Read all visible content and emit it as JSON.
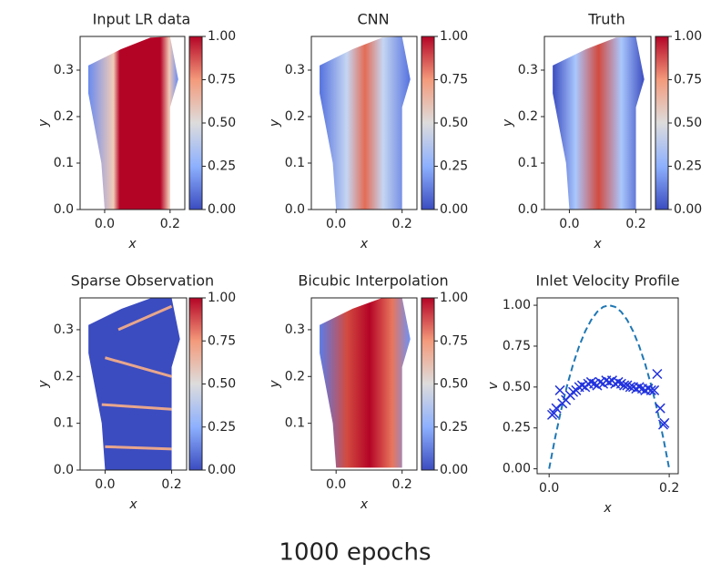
{
  "chart_data": [
    {
      "type": "heatmap",
      "title": "Input LR data",
      "xlabel": "x",
      "ylabel": "y",
      "colormap": "coolwarm",
      "xlim": [
        -0.075,
        0.245
      ],
      "ylim": [
        0,
        0.3725
      ],
      "xticks": [
        {
          "value": 0,
          "label": "0.0"
        },
        0.2
      ],
      "yticks": [
        {
          "value": 0,
          "label": "0.0"
        },
        0.1,
        0.2,
        0.3
      ],
      "cbar_ticks": [
        {
          "value": 0,
          "label": "0.00"
        },
        0.25,
        {
          "value": 0.5,
          "label": "0.50"
        },
        0.75,
        {
          "value": 1,
          "label": "1.00"
        }
      ]
    },
    {
      "type": "heatmap",
      "title": "CNN",
      "xlabel": "x",
      "ylabel": "y",
      "colormap": "coolwarm",
      "xlim": [
        -0.075,
        0.245
      ],
      "ylim": [
        0,
        0.3725
      ],
      "xticks": [
        {
          "value": 0,
          "label": "0.0"
        },
        0.2
      ],
      "yticks": [
        {
          "value": 0,
          "label": "0.0"
        },
        0.1,
        0.2,
        0.3
      ],
      "cbar_ticks": [
        {
          "value": 0,
          "label": "0.00"
        },
        0.25,
        {
          "value": 0.5,
          "label": "0.50"
        },
        0.75,
        {
          "value": 1,
          "label": "1.00"
        }
      ]
    },
    {
      "type": "heatmap",
      "title": "Truth",
      "xlabel": "x",
      "ylabel": "y",
      "colormap": "coolwarm",
      "xlim": [
        -0.075,
        0.245
      ],
      "ylim": [
        0,
        0.3725
      ],
      "xticks": [
        {
          "value": 0,
          "label": "0.0"
        },
        0.2
      ],
      "yticks": [
        {
          "value": 0,
          "label": "0.0"
        },
        0.1,
        0.2,
        0.3
      ],
      "cbar_ticks": [
        {
          "value": 0,
          "label": "0.00"
        },
        0.25,
        {
          "value": 0.5,
          "label": "0.50"
        },
        0.75,
        {
          "value": 1,
          "label": "1.00"
        }
      ]
    },
    {
      "type": "heatmap",
      "title": "Sparse Observation",
      "xlabel": "x",
      "ylabel": "y",
      "colormap": "coolwarm",
      "xlim": [
        -0.075,
        0.245
      ],
      "ylim": [
        0,
        0.368
      ],
      "xticks": [
        {
          "value": 0,
          "label": "0.0"
        },
        0.2
      ],
      "yticks": [
        {
          "value": 0,
          "label": "0.0"
        },
        0.1,
        0.2,
        0.3
      ],
      "cbar_ticks": [
        {
          "value": 0,
          "label": "0.00"
        },
        0.25,
        {
          "value": 0.5,
          "label": "0.50"
        },
        0.75,
        {
          "value": 1,
          "label": "1.00"
        }
      ]
    },
    {
      "type": "heatmap",
      "title": "Bicubic Interpolation",
      "xlabel": "x",
      "ylabel": "y",
      "colormap": "coolwarm",
      "xlim": [
        -0.075,
        0.245
      ],
      "ylim": [
        0,
        0.368
      ],
      "xticks": [
        {
          "value": 0,
          "label": "0.0"
        },
        0.2
      ],
      "yticks": [
        0.1,
        0.2,
        0.3
      ],
      "cbar_ticks": [
        {
          "value": 0,
          "label": "0.00"
        },
        0.25,
        {
          "value": 0.5,
          "label": "0.50"
        },
        0.75,
        {
          "value": 1,
          "label": "1.00"
        }
      ]
    },
    {
      "type": "line",
      "title": "Inlet Velocity Profile",
      "xlabel": "x",
      "ylabel": "v",
      "xlim": [
        -0.02,
        0.215
      ],
      "ylim": [
        -0.03,
        1.045
      ],
      "xticks": [
        {
          "value": 0,
          "label": "0.0"
        },
        0.2
      ],
      "yticks": [
        {
          "value": 0,
          "label": "0.00"
        },
        0.25,
        {
          "value": 0.5,
          "label": "0.50"
        },
        0.75,
        {
          "value": 1,
          "label": "1.00"
        }
      ],
      "series": [
        {
          "style": "dashed",
          "color": "#1f77b4",
          "x": [
            0,
            0.01,
            0.02,
            0.03,
            0.04,
            0.05,
            0.06,
            0.07,
            0.08,
            0.09,
            0.1,
            0.11,
            0.12,
            0.13,
            0.14,
            0.15,
            0.16,
            0.17,
            0.18,
            0.19,
            0.2
          ],
          "values": [
            0,
            0.19,
            0.36,
            0.51,
            0.64,
            0.75,
            0.84,
            0.91,
            0.96,
            0.99,
            1,
            0.99,
            0.96,
            0.91,
            0.84,
            0.75,
            0.64,
            0.51,
            0.36,
            0.19,
            0
          ]
        },
        {
          "style": "marker-x",
          "color": "#2233dd",
          "x": [
            0.005,
            0.008,
            0.012,
            0.018,
            0.022,
            0.028,
            0.035,
            0.04,
            0.045,
            0.05,
            0.055,
            0.06,
            0.065,
            0.07,
            0.075,
            0.08,
            0.085,
            0.09,
            0.095,
            0.1,
            0.105,
            0.11,
            0.115,
            0.12,
            0.125,
            0.13,
            0.135,
            0.14,
            0.145,
            0.15,
            0.155,
            0.16,
            0.165,
            0.17,
            0.175,
            0.18,
            0.185,
            0.19,
            0.192
          ],
          "values": [
            0.33,
            0.34,
            0.37,
            0.48,
            0.4,
            0.42,
            0.45,
            0.47,
            0.48,
            0.5,
            0.51,
            0.5,
            0.52,
            0.53,
            0.52,
            0.51,
            0.53,
            0.52,
            0.54,
            0.53,
            0.54,
            0.52,
            0.53,
            0.52,
            0.51,
            0.51,
            0.5,
            0.5,
            0.49,
            0.5,
            0.49,
            0.48,
            0.49,
            0.48,
            0.48,
            0.58,
            0.37,
            0.27,
            0.28
          ]
        }
      ]
    }
  ],
  "caption": "1000 epochs"
}
